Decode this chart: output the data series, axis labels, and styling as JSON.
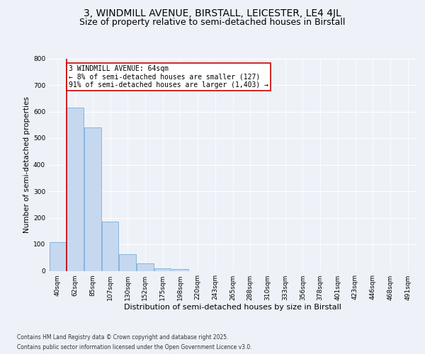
{
  "title1": "3, WINDMILL AVENUE, BIRSTALL, LEICESTER, LE4 4JL",
  "title2": "Size of property relative to semi-detached houses in Birstall",
  "xlabel": "Distribution of semi-detached houses by size in Birstall",
  "ylabel": "Number of semi-detached properties",
  "categories": [
    "40sqm",
    "62sqm",
    "85sqm",
    "107sqm",
    "130sqm",
    "152sqm",
    "175sqm",
    "198sqm",
    "220sqm",
    "243sqm",
    "265sqm",
    "288sqm",
    "310sqm",
    "333sqm",
    "356sqm",
    "378sqm",
    "401sqm",
    "423sqm",
    "446sqm",
    "468sqm",
    "491sqm"
  ],
  "values": [
    107,
    615,
    540,
    185,
    62,
    27,
    10,
    7,
    0,
    0,
    0,
    0,
    0,
    0,
    0,
    0,
    0,
    0,
    0,
    0,
    0
  ],
  "bar_color": "#c5d8f0",
  "bar_edge_color": "#7aaed6",
  "highlight_color": "#cc0000",
  "annotation_text": "3 WINDMILL AVENUE: 64sqm\n← 8% of semi-detached houses are smaller (127)\n91% of semi-detached houses are larger (1,403) →",
  "annotation_box_color": "#ffffff",
  "annotation_box_edge": "#cc0000",
  "ylim": [
    0,
    800
  ],
  "yticks": [
    0,
    100,
    200,
    300,
    400,
    500,
    600,
    700,
    800
  ],
  "footer1": "Contains HM Land Registry data © Crown copyright and database right 2025.",
  "footer2": "Contains public sector information licensed under the Open Government Licence v3.0.",
  "bg_color": "#eef2f8",
  "plot_bg_color": "#eef2f8",
  "title1_fontsize": 10,
  "title2_fontsize": 9,
  "tick_fontsize": 6.5,
  "xlabel_fontsize": 8,
  "ylabel_fontsize": 7.5,
  "annot_fontsize": 7,
  "footer_fontsize": 5.5
}
